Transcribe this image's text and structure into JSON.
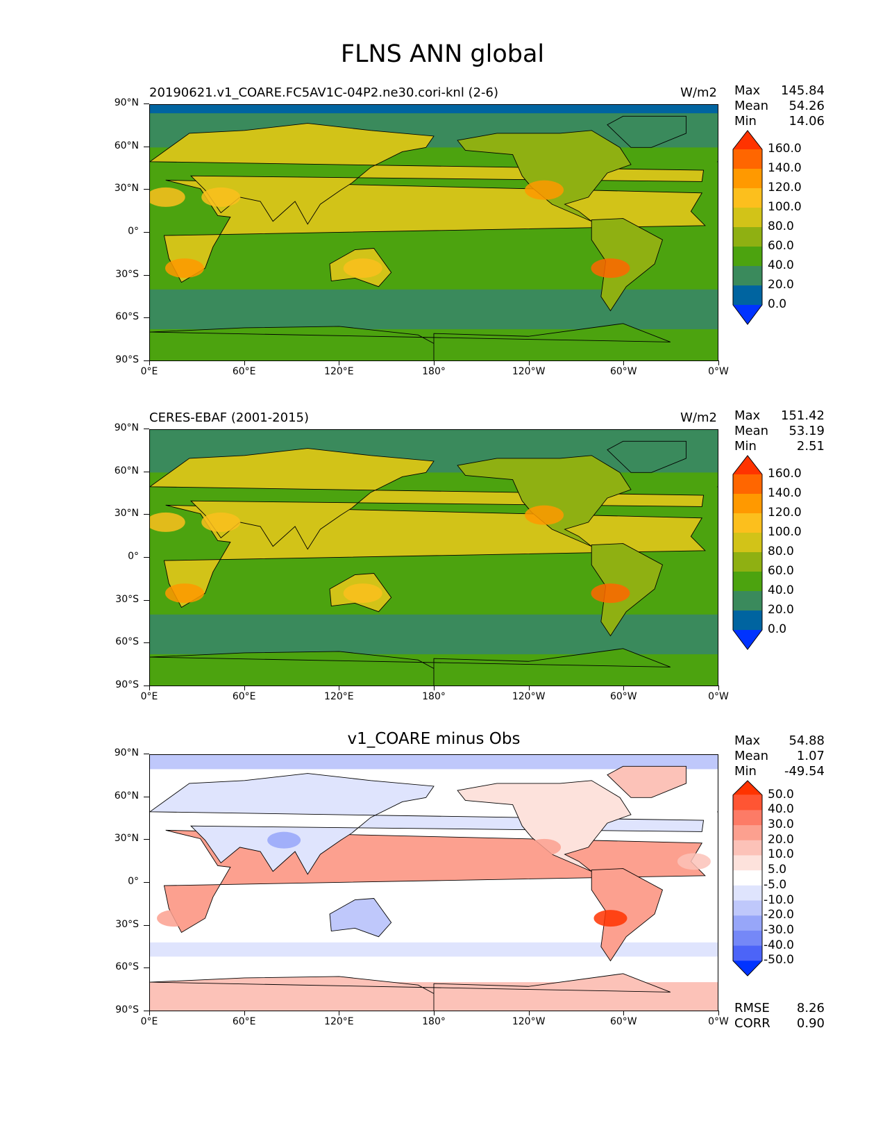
{
  "title": "FLNS ANN global",
  "chart_data": [
    {
      "type": "heatmap",
      "title_left": "20190621.v1_COARE.FC5AV1C-04P2.ne30.cori-knl (2-6)",
      "units": "W/m2",
      "stats": [
        {
          "label": "Max",
          "value": "145.84"
        },
        {
          "label": "Mean",
          "value": "54.26"
        },
        {
          "label": "Min",
          "value": "14.06"
        }
      ],
      "colorbar_levels": [
        "160.0",
        "140.0",
        "120.0",
        "100.0",
        "80.0",
        "60.0",
        "40.0",
        "20.0",
        "0.0"
      ],
      "colorbar_colors": [
        "#ff3300",
        "#ff6600",
        "#ff9900",
        "#fcbf1d",
        "#d2c318",
        "#8fb012",
        "#4ca30f",
        "#3a8a5c",
        "#0064a0",
        "#0033ff"
      ],
      "xticks": [
        "0°E",
        "60°E",
        "120°E",
        "180°",
        "120°W",
        "60°W",
        "0°W"
      ],
      "yticks": [
        "90°N",
        "60°N",
        "30°N",
        "0°",
        "30°S",
        "60°S",
        "90°S"
      ],
      "xlim": [
        0,
        360
      ],
      "ylim": [
        -90,
        90
      ]
    },
    {
      "type": "heatmap",
      "title_left": "CERES-EBAF (2001-2015)",
      "units": "W/m2",
      "stats": [
        {
          "label": "Max",
          "value": "151.42"
        },
        {
          "label": "Mean",
          "value": "53.19"
        },
        {
          "label": "Min",
          "value": "2.51"
        }
      ],
      "colorbar_levels": [
        "160.0",
        "140.0",
        "120.0",
        "100.0",
        "80.0",
        "60.0",
        "40.0",
        "20.0",
        "0.0"
      ],
      "colorbar_colors": [
        "#ff3300",
        "#ff6600",
        "#ff9900",
        "#fcbf1d",
        "#d2c318",
        "#8fb012",
        "#4ca30f",
        "#3a8a5c",
        "#0064a0",
        "#0033ff"
      ],
      "xticks": [
        "0°E",
        "60°E",
        "120°E",
        "180°",
        "120°W",
        "60°W",
        "0°W"
      ],
      "yticks": [
        "90°N",
        "60°N",
        "30°N",
        "0°",
        "30°S",
        "60°S",
        "90°S"
      ],
      "xlim": [
        0,
        360
      ],
      "ylim": [
        -90,
        90
      ]
    },
    {
      "type": "heatmap",
      "title_center": "v1_COARE minus Obs",
      "stats": [
        {
          "label": "Max",
          "value": "54.88"
        },
        {
          "label": "Mean",
          "value": "1.07"
        },
        {
          "label": "Min",
          "value": "-49.54"
        }
      ],
      "colorbar_levels": [
        "50.0",
        "40.0",
        "30.0",
        "20.0",
        "10.0",
        "5.0",
        "-5.0",
        "-10.0",
        "-20.0",
        "-30.0",
        "-40.0",
        "-50.0"
      ],
      "colorbar_colors": [
        "#ff3300",
        "#ff5533",
        "#fd7b66",
        "#fca08f",
        "#fcc2b8",
        "#fde2dc",
        "#ffffff",
        "#dfe4fd",
        "#bfc8fb",
        "#97a6f9",
        "#7588f7",
        "#4c64f8",
        "#0033ff"
      ],
      "xticks": [
        "0°E",
        "60°E",
        "120°E",
        "180°",
        "120°W",
        "60°W",
        "0°W"
      ],
      "yticks": [
        "90°N",
        "60°N",
        "30°N",
        "0°",
        "30°S",
        "60°S",
        "90°S"
      ],
      "xlim": [
        0,
        360
      ],
      "ylim": [
        -90,
        90
      ],
      "bottom_stats": [
        {
          "label": "RMSE",
          "value": "8.26"
        },
        {
          "label": "CORR",
          "value": "0.90"
        }
      ]
    }
  ]
}
